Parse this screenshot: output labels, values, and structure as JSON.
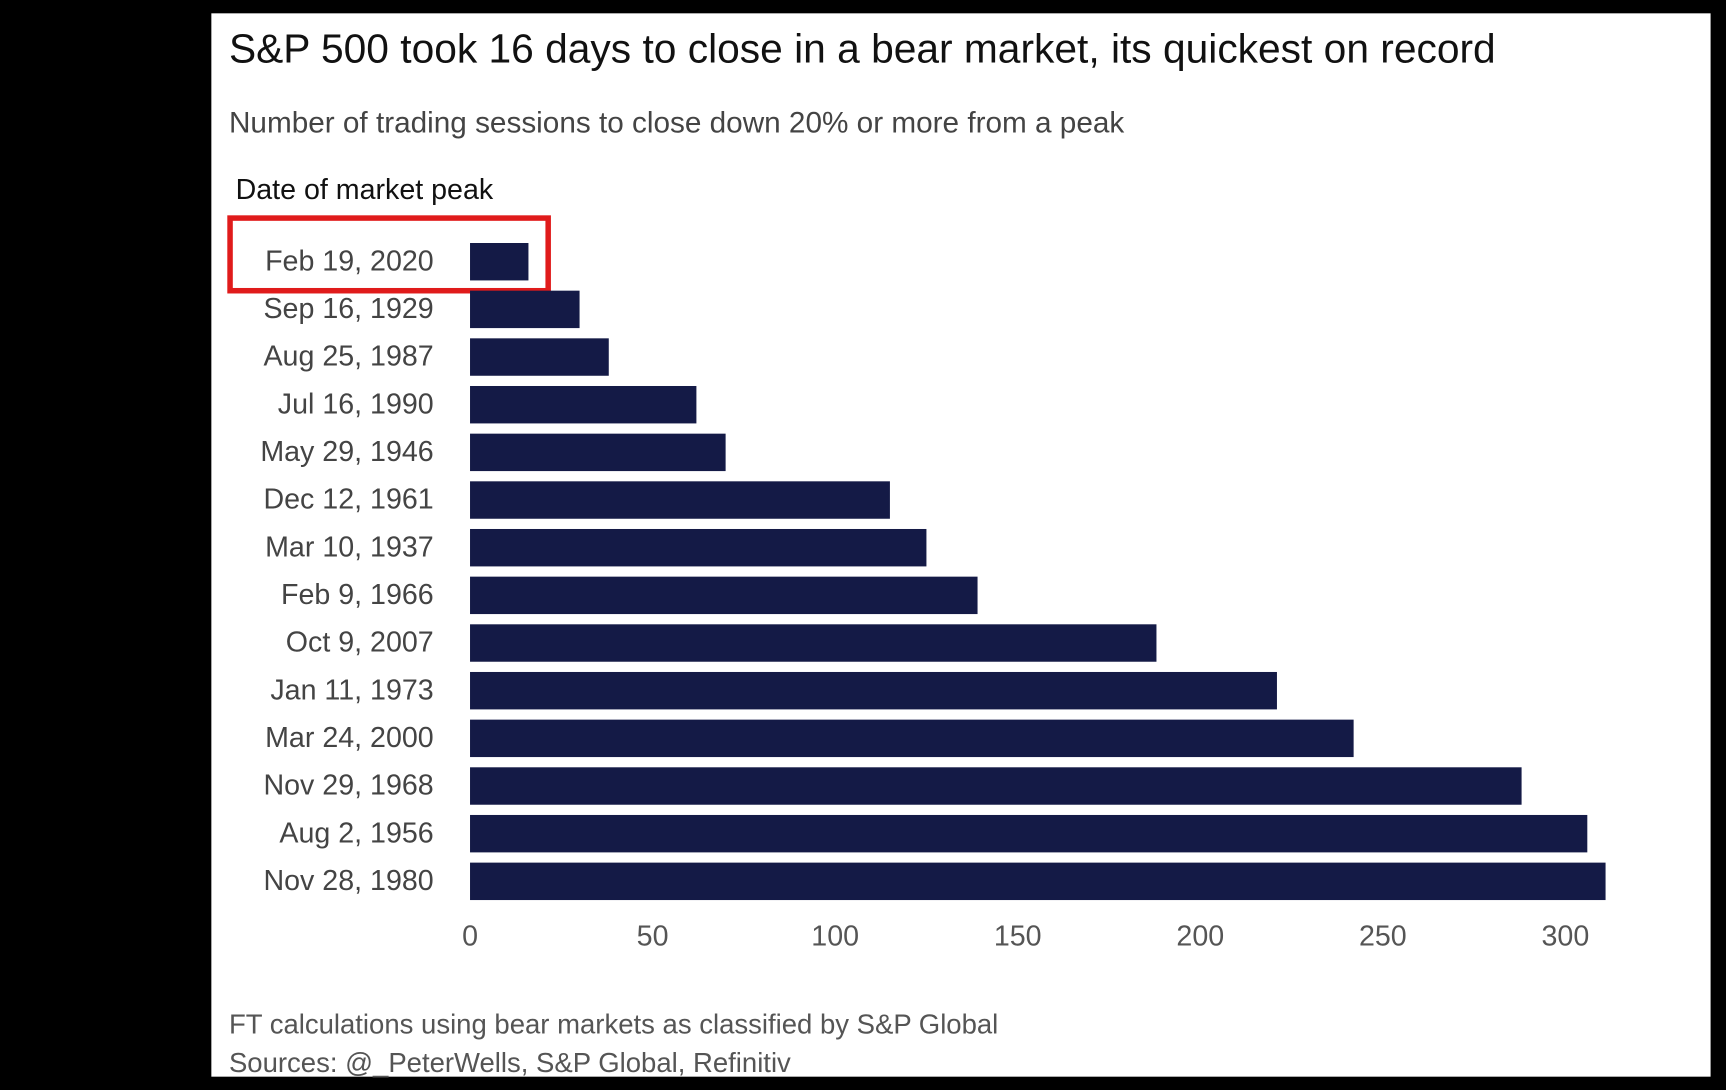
{
  "chart_data": {
    "type": "hbar",
    "title": "S&P 500 took 16 days to close in a bear market, its quickest on record",
    "subtitle": "Number of trading sessions to close down 20% or more from a peak",
    "y_axis_label": "Date of market peak",
    "categories": [
      "Feb 19, 2020",
      "Sep 16, 1929",
      "Aug 25, 1987",
      "Jul 16, 1990",
      "May 29, 1946",
      "Dec 12, 1961",
      "Mar 10, 1937",
      "Feb 9, 1966",
      "Oct 9, 2007",
      "Jan 11, 1973",
      "Mar 24, 2000",
      "Nov 29, 1968",
      "Aug 2, 1956",
      "Nov 28, 1980"
    ],
    "values": [
      16,
      30,
      38,
      62,
      70,
      115,
      125,
      139,
      188,
      221,
      242,
      288,
      306,
      311
    ],
    "color": "#141a46",
    "xlim": [
      0,
      315
    ],
    "xticks": [
      0,
      50,
      100,
      150,
      200,
      250,
      300
    ],
    "notes": [
      "FT calculations using bear markets as classified by S&P Global",
      "Sources: @_PeterWells, S&P Global, Refinitiv"
    ]
  }
}
